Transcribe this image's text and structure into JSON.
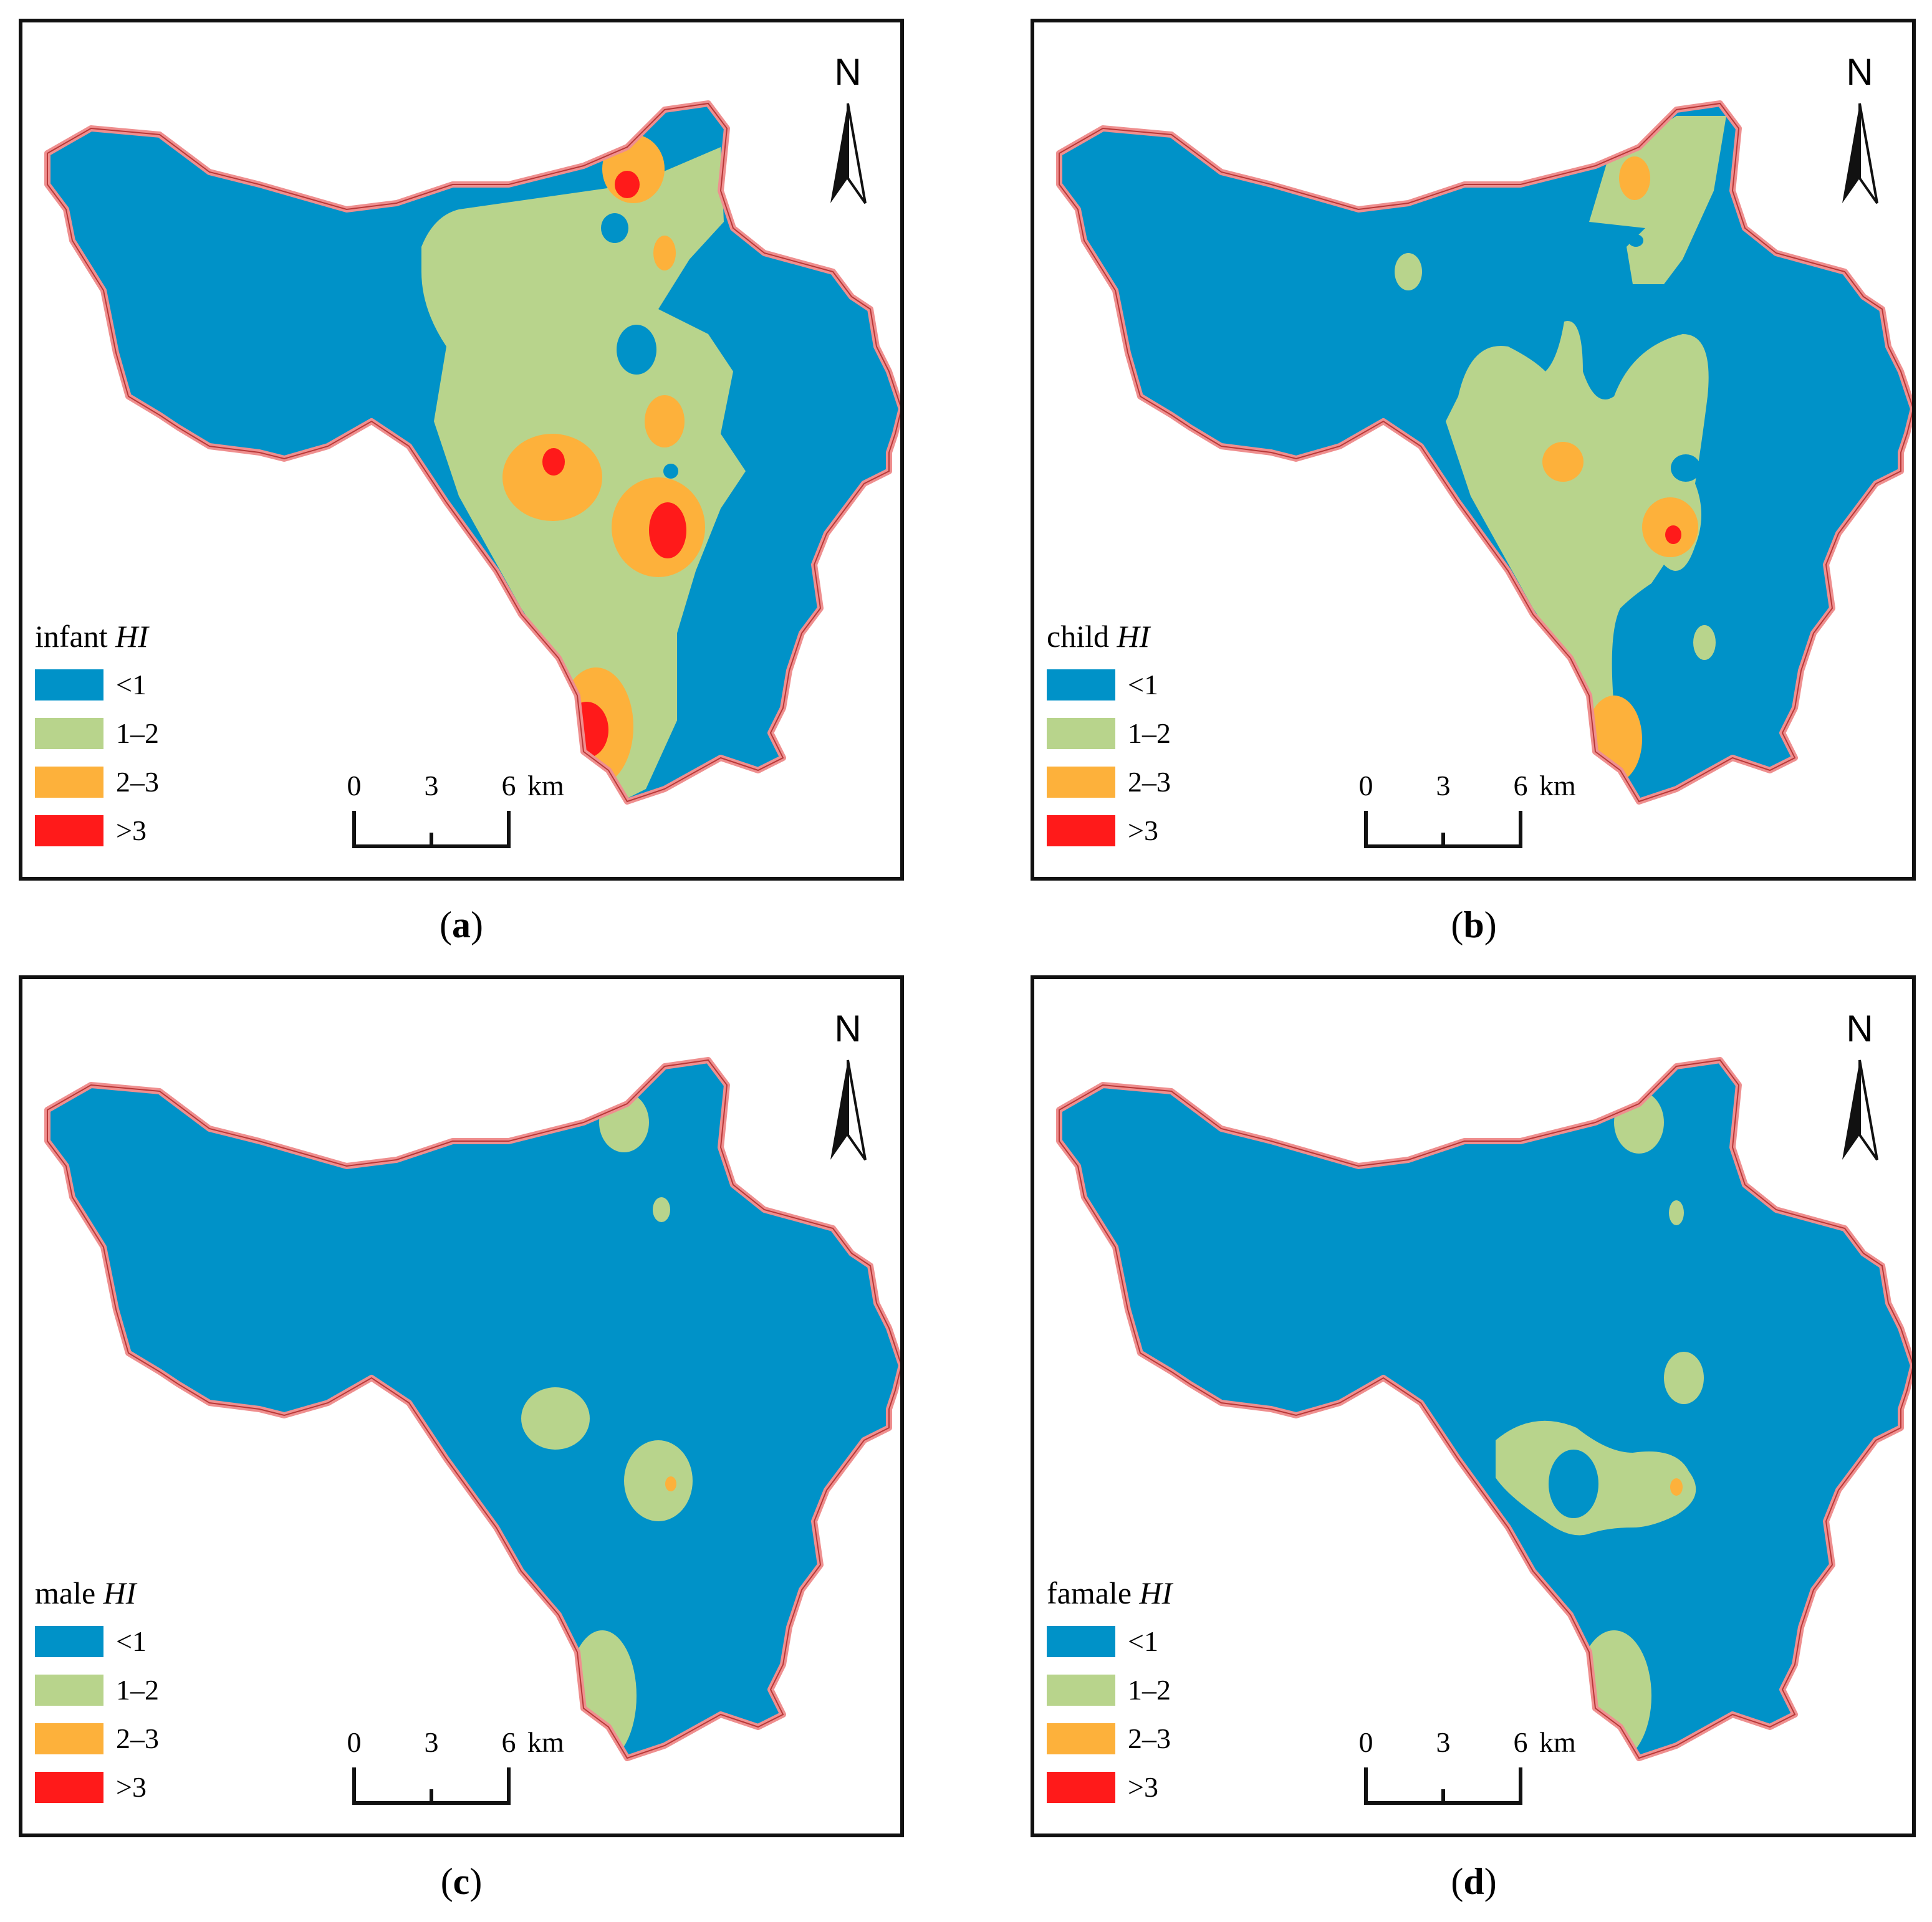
{
  "colors": {
    "lt1": "#0092c8",
    "r12": "#b8d48c",
    "r23": "#fdb13b",
    "gt3": "#ff1a1a",
    "boundary_outer": "#ef8f8f",
    "boundary_inner": "#b83838"
  },
  "legend_items": [
    {
      "label": "<1",
      "color": "#0092c8"
    },
    {
      "label": "1–2",
      "color": "#b8d48c"
    },
    {
      "label": "2–3",
      "color": "#fdb13b"
    },
    {
      "label": ">3",
      "color": "#ff1a1a"
    }
  ],
  "north_label": "N",
  "scale": {
    "t0": "0",
    "t1": "3",
    "t2": "6",
    "unit": "km"
  },
  "panels": [
    {
      "id": "a",
      "legend_title": "infant",
      "legend_title_italic": "HI",
      "caption": "a"
    },
    {
      "id": "b",
      "legend_title": "child",
      "legend_title_italic": "HI",
      "caption": "b"
    },
    {
      "id": "c",
      "legend_title": "male",
      "legend_title_italic": "HI",
      "caption": "c"
    },
    {
      "id": "d",
      "legend_title": "famale",
      "legend_title_italic": "HI",
      "caption": "d"
    }
  ]
}
